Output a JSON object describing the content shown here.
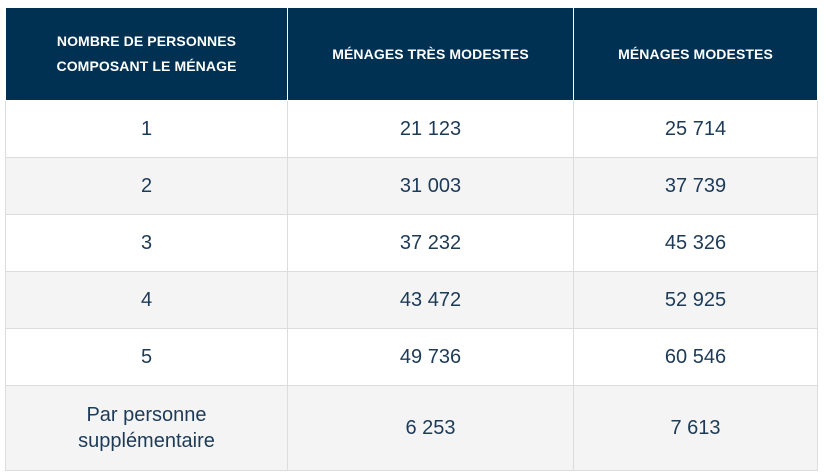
{
  "table": {
    "headers": [
      "NOMBRE DE PERSONNES COMPOSANT LE MÉNAGE",
      "MÉNAGES TRÈS MODESTES",
      "MÉNAGES MODESTES"
    ],
    "rows": [
      [
        "1",
        "21 123",
        "25 714"
      ],
      [
        "2",
        "31 003",
        "37 739"
      ],
      [
        "3",
        "37 232",
        "45 326"
      ],
      [
        "4",
        "43 472",
        "52 925"
      ],
      [
        "5",
        "49 736",
        "60 546"
      ],
      [
        "Par personne supplémentaire",
        "6 253",
        "7 613"
      ]
    ]
  },
  "colors": {
    "header_background": "#003152",
    "header_text": "#ffffff",
    "body_text": "#1d3a57",
    "alt_row_background": "#f4f4f4",
    "border": "#dcdcdc"
  }
}
